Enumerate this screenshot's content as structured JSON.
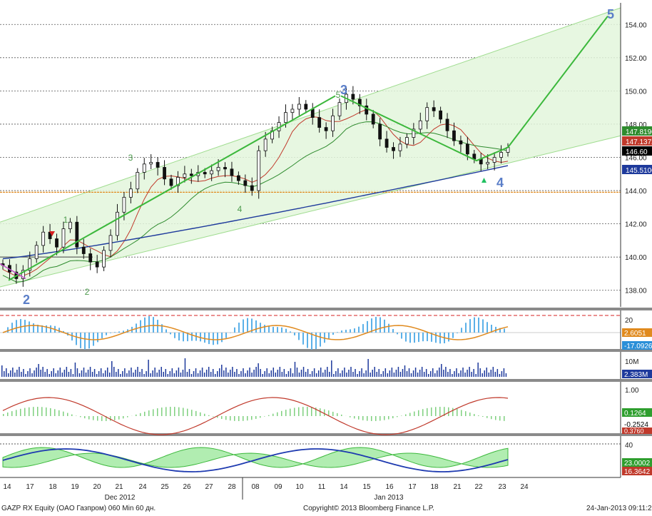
{
  "chart_data": {
    "type": "candlestick",
    "security": "GAZP RX Equity (OAO Газпром) 060 Min 60 дн.",
    "copyright": "Copyright© 2013 Bloomberg Finance L.P.",
    "timestamp": "24-Jan-2013 09:11:27",
    "x_tick_labels": [
      "14",
      "17",
      "18",
      "19",
      "20",
      "21",
      "24",
      "25",
      "26",
      "27",
      "28",
      "08",
      "09",
      "10",
      "11",
      "14",
      "15",
      "16",
      "17",
      "18",
      "21",
      "22",
      "23",
      "24"
    ],
    "month_labels": [
      "Dec 2012",
      "Jan 2013"
    ],
    "price_panel": {
      "ylim": [
        137.0,
        155.3
      ],
      "y_ticks": [
        "138.00",
        "140.00",
        "142.00",
        "144.00",
        "146.00",
        "148.00",
        "150.00",
        "152.00",
        "154.00"
      ],
      "close_series": [
        139.5,
        139.1,
        138.7,
        139.2,
        139.9,
        140.7,
        141.5,
        141.1,
        140.6,
        141.7,
        142.1,
        140.6,
        140.2,
        139.7,
        139.4,
        140.4,
        141.3,
        142.7,
        143.6,
        144.1,
        145.1,
        145.6,
        145.7,
        145.4,
        144.7,
        144.3,
        144.8,
        145.0,
        144.9,
        145.1,
        145.0,
        145.2,
        145.4,
        145.3,
        144.9,
        144.6,
        144.3,
        144.0,
        146.4,
        147.1,
        147.6,
        148.1,
        148.7,
        148.9,
        149.2,
        148.9,
        148.4,
        147.8,
        147.6,
        148.5,
        149.3,
        149.8,
        149.5,
        149.1,
        148.6,
        148.0,
        147.1,
        146.6,
        146.4,
        146.8,
        147.2,
        147.7,
        148.2,
        149.0,
        148.8,
        148.3,
        147.6,
        147.0,
        146.8,
        146.2,
        145.9,
        145.6,
        145.7,
        146.0,
        146.3,
        146.6
      ],
      "line_labels": [
        {
          "label": "147.8196",
          "color": "#2e8b2e"
        },
        {
          "label": "147.1372",
          "color": "#c0392b"
        },
        {
          "label": "146.60",
          "color": "#000000"
        },
        {
          "label": "145.5106",
          "color": "#1e3a9c"
        }
      ],
      "wave_labels": [
        "1",
        "2",
        "3",
        "4",
        "5",
        "2",
        "3",
        "4",
        "5"
      ],
      "horizontal_level": 143.9
    },
    "oscillator_panel_1": {
      "y_ticks": [
        "20"
      ],
      "labels": [
        {
          "label": "2.6051",
          "color": "#e08a1e"
        },
        {
          "label": "-17.0926",
          "color": "#2a8fd8"
        }
      ]
    },
    "volume_panel": {
      "y_ticks": [
        "10M"
      ],
      "labels": [
        {
          "label": "2.383M",
          "color": "#1e3a9c"
        }
      ]
    },
    "oscillator_panel_2": {
      "y_ticks": [
        "1.00"
      ],
      "labels": [
        {
          "label": "0.1264",
          "color": "#2e9e2e"
        },
        {
          "label": "-0.2524",
          "color": "#000000"
        },
        {
          "label": "0.3760",
          "color": "#c0392b"
        }
      ]
    },
    "oscillator_panel_3": {
      "y_ticks": [
        "40"
      ],
      "labels": [
        {
          "label": "23.0002",
          "color": "#2e9e2e"
        },
        {
          "label": "16.3642",
          "color": "#c0392b"
        }
      ]
    }
  }
}
